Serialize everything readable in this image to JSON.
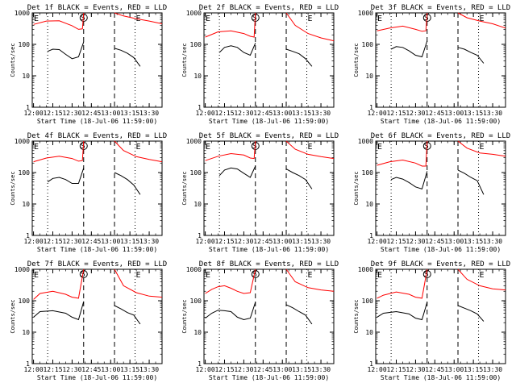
{
  "figure": {
    "common": {
      "type": "line",
      "ylabel": "Counts/sec",
      "xlabel": "Start Time (18-Jul-06 11:59:00)",
      "x_ticks": [
        "12:00",
        "12:15",
        "12:30",
        "12:45",
        "13:00",
        "13:15",
        "13:30"
      ],
      "y_ticks": [
        "1",
        "10",
        "100",
        "1000"
      ],
      "y_scale": "log",
      "ylim": [
        1,
        1000
      ],
      "xlim": [
        "11:59",
        "13:40"
      ],
      "markers": {
        "S": "12:39",
        "E": "13:19"
      },
      "colors": {
        "events": "#000000",
        "lld": "#ff0000"
      }
    },
    "panels": [
      {
        "title": "Det 1f BLACK = Events, RED = LLD"
      },
      {
        "title": "Det 2f BLACK = Events, RED = LLD"
      },
      {
        "title": "Det 3f BLACK = Events, RED = LLD"
      },
      {
        "title": "Det 4f BLACK = Events, RED = LLD"
      },
      {
        "title": "Det 5f BLACK = Events, RED = LLD"
      },
      {
        "title": "Det 6f BLACK = Events, RED = LLD"
      },
      {
        "title": "Det 7f BLACK = Events, RED = LLD"
      },
      {
        "title": "Det 8f BLACK = Events, RED = LLD"
      },
      {
        "title": "Det 9f BLACK = Events, RED = LLD"
      }
    ]
  },
  "chart_data": [
    {
      "type": "line",
      "title": "Det 1f BLACK = Events, RED = LLD",
      "xlabel": "Start Time (18-Jul-06 11:59:00)",
      "ylabel": "Counts/sec",
      "series": [
        {
          "name": "BLACK = Events",
          "x": [
            "12:11",
            "12:15",
            "12:20",
            "12:25",
            "12:30",
            "12:35",
            "12:39"
          ],
          "y": [
            60,
            70,
            68,
            48,
            35,
            40,
            120
          ],
          "x2": [
            "13:03",
            "13:08",
            "13:13",
            "13:18",
            "13:23"
          ],
          "y2": [
            75,
            65,
            52,
            38,
            20
          ]
        },
        {
          "name": "RED = LLD",
          "x": [
            "12:00",
            "12:10",
            "12:20",
            "12:30",
            "12:35",
            "12:38",
            "12:39"
          ],
          "y": [
            430,
            550,
            560,
            390,
            300,
            310,
            1000
          ],
          "x2": [
            "13:03",
            "13:10",
            "13:20",
            "13:30",
            "13:40"
          ],
          "y2": [
            1000,
            800,
            650,
            550,
            450
          ]
        }
      ]
    },
    {
      "type": "line",
      "title": "Det 2f BLACK = Events, RED = LLD",
      "xlabel": "Start Time (18-Jul-06 11:59:00)",
      "ylabel": "Counts/sec",
      "series": [
        {
          "name": "BLACK = Events",
          "x": [
            "12:11",
            "12:15",
            "12:20",
            "12:25",
            "12:30",
            "12:35",
            "12:39"
          ],
          "y": [
            55,
            80,
            90,
            80,
            55,
            45,
            110
          ],
          "x2": [
            "13:03",
            "13:08",
            "13:13",
            "13:18",
            "13:23"
          ],
          "y2": [
            70,
            60,
            50,
            35,
            20
          ]
        },
        {
          "name": "RED = LLD",
          "x": [
            "12:00",
            "12:10",
            "12:20",
            "12:30",
            "12:35",
            "12:38",
            "12:39"
          ],
          "y": [
            170,
            250,
            270,
            220,
            180,
            170,
            1000
          ],
          "x2": [
            "13:03",
            "13:10",
            "13:20",
            "13:30",
            "13:40"
          ],
          "y2": [
            1000,
            400,
            220,
            160,
            130
          ]
        }
      ]
    },
    {
      "type": "line",
      "title": "Det 3f BLACK = Events, RED = LLD",
      "xlabel": "Start Time (18-Jul-06 11:59:00)",
      "ylabel": "Counts/sec",
      "series": [
        {
          "name": "BLACK = Events",
          "x": [
            "12:11",
            "12:15",
            "12:20",
            "12:25",
            "12:30",
            "12:35",
            "12:39"
          ],
          "y": [
            70,
            85,
            80,
            62,
            45,
            40,
            130
          ],
          "x2": [
            "13:03",
            "13:08",
            "13:13",
            "13:18",
            "13:23"
          ],
          "y2": [
            80,
            70,
            55,
            45,
            25
          ]
        },
        {
          "name": "RED = LLD",
          "x": [
            "12:00",
            "12:10",
            "12:20",
            "12:30",
            "12:35",
            "12:38",
            "12:39"
          ],
          "y": [
            270,
            330,
            380,
            300,
            260,
            270,
            1000
          ],
          "x2": [
            "13:03",
            "13:10",
            "13:20",
            "13:30",
            "13:40"
          ],
          "y2": [
            1000,
            700,
            550,
            450,
            330
          ]
        }
      ]
    },
    {
      "type": "line",
      "title": "Det 4f BLACK = Events, RED = LLD",
      "xlabel": "Start Time (18-Jul-06 11:59:00)",
      "ylabel": "Counts/sec",
      "series": [
        {
          "name": "BLACK = Events",
          "x": [
            "12:11",
            "12:15",
            "12:20",
            "12:25",
            "12:30",
            "12:35",
            "12:39"
          ],
          "y": [
            50,
            65,
            70,
            60,
            45,
            45,
            140
          ],
          "x2": [
            "13:03",
            "13:08",
            "13:13",
            "13:18",
            "13:23"
          ],
          "y2": [
            100,
            80,
            60,
            40,
            20
          ]
        },
        {
          "name": "RED = LLD",
          "x": [
            "12:00",
            "12:10",
            "12:20",
            "12:30",
            "12:35",
            "12:38",
            "12:39"
          ],
          "y": [
            220,
            290,
            330,
            280,
            230,
            240,
            1000
          ],
          "x2": [
            "13:03",
            "13:10",
            "13:20",
            "13:30",
            "13:40"
          ],
          "y2": [
            1000,
            500,
            320,
            260,
            220
          ]
        }
      ]
    },
    {
      "type": "line",
      "title": "Det 5f BLACK = Events, RED = LLD",
      "xlabel": "Start Time (18-Jul-06 11:59:00)",
      "ylabel": "Counts/sec",
      "series": [
        {
          "name": "BLACK = Events",
          "x": [
            "12:11",
            "12:15",
            "12:20",
            "12:25",
            "12:30",
            "12:35",
            "12:39"
          ],
          "y": [
            80,
            120,
            140,
            130,
            95,
            70,
            160
          ],
          "x2": [
            "13:03",
            "13:08",
            "13:13",
            "13:18",
            "13:23"
          ],
          "y2": [
            130,
            100,
            80,
            60,
            30
          ]
        },
        {
          "name": "RED = LLD",
          "x": [
            "12:00",
            "12:10",
            "12:20",
            "12:30",
            "12:35",
            "12:38",
            "12:39"
          ],
          "y": [
            240,
            330,
            400,
            360,
            290,
            280,
            1000
          ],
          "x2": [
            "13:03",
            "13:10",
            "13:20",
            "13:30",
            "13:40"
          ],
          "y2": [
            1000,
            550,
            380,
            320,
            280
          ]
        }
      ]
    },
    {
      "type": "line",
      "title": "Det 6f BLACK = Events, RED = LLD",
      "xlabel": "Start Time (18-Jul-06 11:59:00)",
      "ylabel": "Counts/sec",
      "series": [
        {
          "name": "BLACK = Events",
          "x": [
            "12:11",
            "12:15",
            "12:20",
            "12:25",
            "12:30",
            "12:35",
            "12:39"
          ],
          "y": [
            60,
            70,
            62,
            48,
            35,
            30,
            110
          ],
          "x2": [
            "13:03",
            "13:08",
            "13:13",
            "13:18",
            "13:23"
          ],
          "y2": [
            120,
            95,
            70,
            55,
            20
          ]
        },
        {
          "name": "RED = LLD",
          "x": [
            "12:00",
            "12:10",
            "12:20",
            "12:30",
            "12:35",
            "12:38",
            "12:39"
          ],
          "y": [
            170,
            220,
            250,
            200,
            160,
            160,
            1000
          ],
          "x2": [
            "13:03",
            "13:10",
            "13:20",
            "13:30",
            "13:40"
          ],
          "y2": [
            1000,
            600,
            420,
            380,
            330
          ]
        }
      ]
    },
    {
      "type": "line",
      "title": "Det 7f BLACK = Events, RED = LLD",
      "xlabel": "Start Time (18-Jul-06 11:59:00)",
      "ylabel": "Counts/sec",
      "series": [
        {
          "name": "BLACK = Events",
          "x": [
            "12:00",
            "12:05",
            "12:15",
            "12:25",
            "12:30",
            "12:35",
            "12:39"
          ],
          "y": [
            30,
            45,
            48,
            40,
            30,
            25,
            95
          ],
          "x2": [
            "13:03",
            "13:08",
            "13:13",
            "13:18",
            "13:23"
          ],
          "y2": [
            70,
            55,
            42,
            35,
            18
          ]
        },
        {
          "name": "RED = LLD",
          "x": [
            "12:00",
            "12:05",
            "12:15",
            "12:25",
            "12:30",
            "12:35",
            "12:39"
          ],
          "y": [
            110,
            170,
            200,
            160,
            130,
            120,
            1000
          ],
          "x2": [
            "13:03",
            "13:10",
            "13:20",
            "13:30",
            "13:40"
          ],
          "y2": [
            1000,
            300,
            180,
            140,
            130
          ]
        }
      ]
    },
    {
      "type": "line",
      "title": "Det 8f BLACK = Events, RED = LLD",
      "xlabel": "Start Time (18-Jul-06 11:59:00)",
      "ylabel": "Counts/sec",
      "series": [
        {
          "name": "BLACK = Events",
          "x": [
            "12:00",
            "12:05",
            "12:10",
            "12:15",
            "12:20",
            "12:25",
            "12:30",
            "12:35",
            "12:39"
          ],
          "y": [
            28,
            40,
            50,
            48,
            45,
            30,
            25,
            28,
            90
          ],
          "x2": [
            "13:03",
            "13:08",
            "13:13",
            "13:18",
            "13:23"
          ],
          "y2": [
            75,
            60,
            45,
            35,
            18
          ]
        },
        {
          "name": "RED = LLD",
          "x": [
            "12:00",
            "12:05",
            "12:10",
            "12:15",
            "12:20",
            "12:25",
            "12:30",
            "12:35",
            "12:39"
          ],
          "y": [
            170,
            230,
            280,
            300,
            250,
            200,
            170,
            180,
            1000
          ],
          "x2": [
            "13:03",
            "13:10",
            "13:20",
            "13:30",
            "13:40"
          ],
          "y2": [
            1000,
            400,
            260,
            220,
            200
          ]
        }
      ]
    },
    {
      "type": "line",
      "title": "Det 9f BLACK = Events, RED = LLD",
      "xlabel": "Start Time (18-Jul-06 11:59:00)",
      "ylabel": "Counts/sec",
      "series": [
        {
          "name": "BLACK = Events",
          "x": [
            "12:00",
            "12:05",
            "12:15",
            "12:25",
            "12:30",
            "12:35",
            "12:39"
          ],
          "y": [
            30,
            40,
            45,
            38,
            28,
            25,
            90
          ],
          "x2": [
            "13:03",
            "13:08",
            "13:13",
            "13:18",
            "13:23"
          ],
          "y2": [
            70,
            58,
            48,
            38,
            22
          ]
        },
        {
          "name": "RED = LLD",
          "x": [
            "12:00",
            "12:05",
            "12:15",
            "12:25",
            "12:30",
            "12:35",
            "12:39"
          ],
          "y": [
            120,
            150,
            190,
            160,
            130,
            120,
            1000
          ],
          "x2": [
            "13:03",
            "13:10",
            "13:20",
            "13:30",
            "13:40"
          ],
          "y2": [
            1000,
            480,
            300,
            240,
            220
          ]
        }
      ]
    }
  ]
}
